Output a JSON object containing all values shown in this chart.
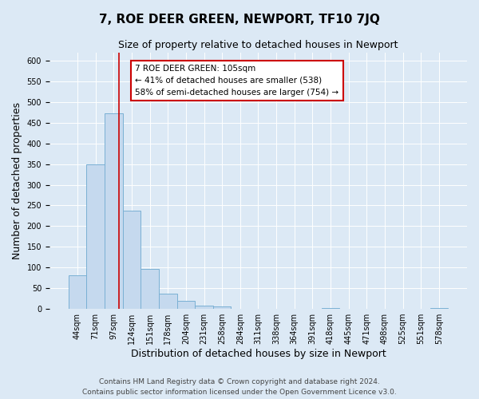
{
  "title": "7, ROE DEER GREEN, NEWPORT, TF10 7JQ",
  "subtitle": "Size of property relative to detached houses in Newport",
  "xlabel": "Distribution of detached houses by size in Newport",
  "ylabel": "Number of detached properties",
  "footer_line1": "Contains HM Land Registry data © Crown copyright and database right 2024.",
  "footer_line2": "Contains public sector information licensed under the Open Government Licence v3.0.",
  "bin_labels": [
    "44sqm",
    "71sqm",
    "97sqm",
    "124sqm",
    "151sqm",
    "178sqm",
    "204sqm",
    "231sqm",
    "258sqm",
    "284sqm",
    "311sqm",
    "338sqm",
    "364sqm",
    "391sqm",
    "418sqm",
    "445sqm",
    "471sqm",
    "498sqm",
    "525sqm",
    "551sqm",
    "578sqm"
  ],
  "bar_heights": [
    82,
    350,
    472,
    237,
    97,
    36,
    19,
    8,
    5,
    0,
    0,
    0,
    0,
    0,
    3,
    0,
    0,
    0,
    0,
    0,
    3
  ],
  "bar_color": "#c5d9ee",
  "bar_edgecolor": "#7ab0d4",
  "annotation_text_line1": "7 ROE DEER GREEN: 105sqm",
  "annotation_text_line2": "← 41% of detached houses are smaller (538)",
  "annotation_text_line3": "58% of semi-detached houses are larger (754) →",
  "annotation_box_color": "#ffffff",
  "annotation_box_edgecolor": "#cc0000",
  "vline_color": "#cc0000",
  "vline_x": 2.3,
  "ylim": [
    0,
    620
  ],
  "yticks": [
    0,
    50,
    100,
    150,
    200,
    250,
    300,
    350,
    400,
    450,
    500,
    550,
    600
  ],
  "background_color": "#dce9f5",
  "plot_bg_color": "#dce9f5",
  "grid_color": "#ffffff",
  "title_fontsize": 11,
  "subtitle_fontsize": 9,
  "xlabel_fontsize": 9,
  "ylabel_fontsize": 9,
  "tick_fontsize": 7,
  "annotation_fontsize": 7.5,
  "footer_fontsize": 6.5
}
